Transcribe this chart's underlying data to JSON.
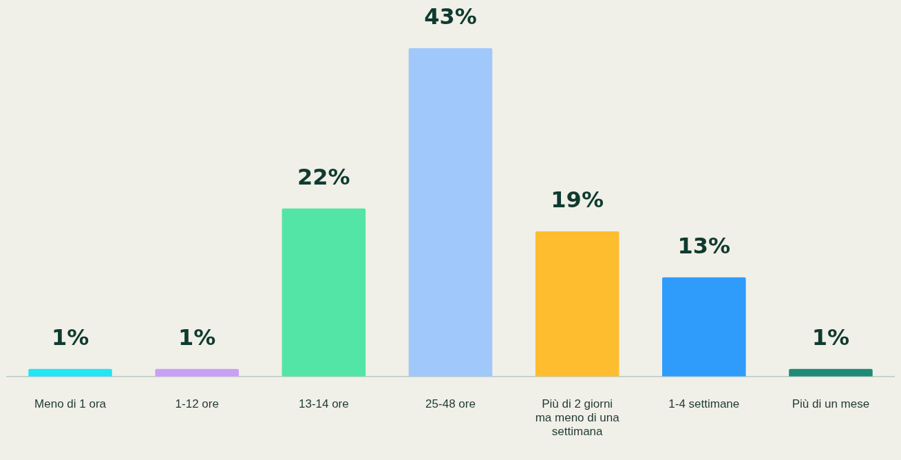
{
  "chart_data": {
    "type": "bar",
    "categories": [
      "Meno di 1 ora",
      "1-12 ore",
      "13-14 ore",
      "25-48 ore",
      "Più di 2 giorni ma meno di una settimana",
      "1-4 settimane",
      "Più di un mese"
    ],
    "values": [
      1,
      1,
      22,
      43,
      19,
      13,
      1
    ],
    "colors": [
      "#22e5f5",
      "#c9a0f5",
      "#52e5a5",
      "#a0c8fb",
      "#fdbd2e",
      "#2f9bfb",
      "#1f8a75"
    ],
    "value_labels": [
      "1%",
      "1%",
      "22%",
      "43%",
      "19%",
      "13%",
      "1%"
    ],
    "grid": false,
    "legend": false
  }
}
